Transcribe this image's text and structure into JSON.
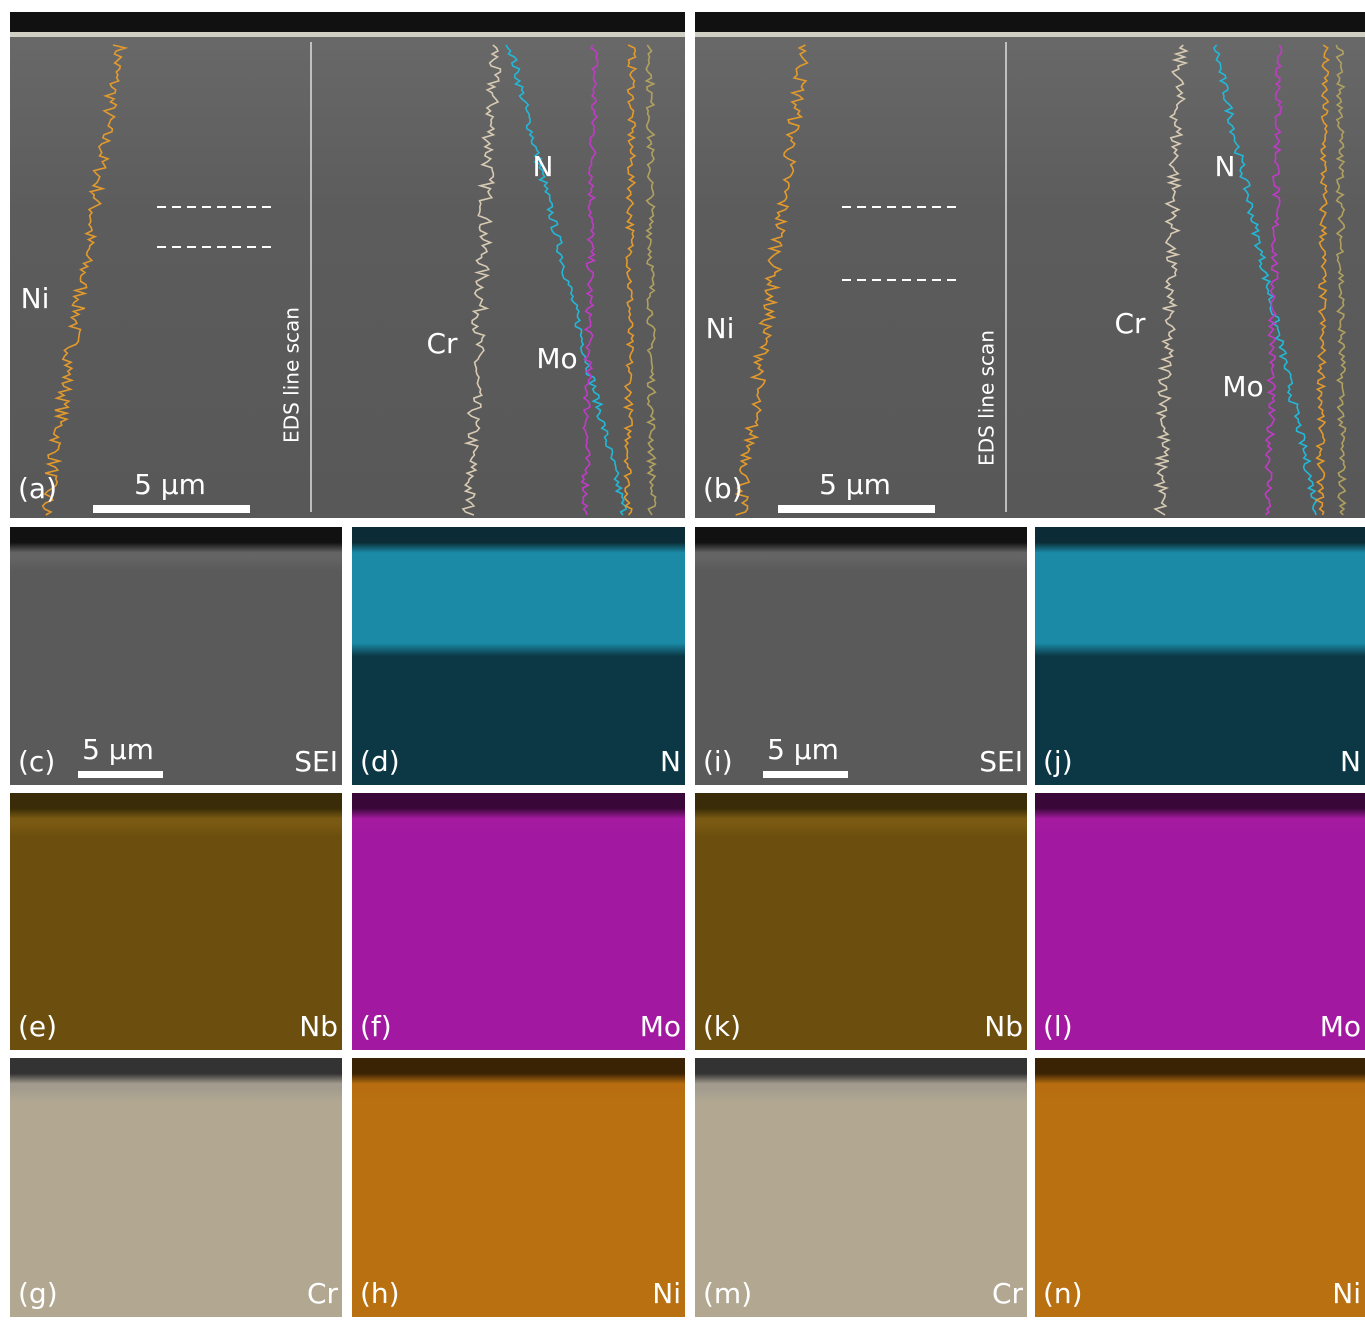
{
  "panels_top": [
    {
      "label": "(a)",
      "scale_bar": "5 μm",
      "line_scan": "EDS line scan",
      "elements": [
        "Ni",
        "Cr",
        "N",
        "Mo"
      ]
    },
    {
      "label": "(b)",
      "scale_bar": "5 μm",
      "line_scan": "EDS line scan",
      "elements": [
        "Ni",
        "Cr",
        "N",
        "Mo"
      ]
    }
  ],
  "panels_map": [
    {
      "label": "(c)",
      "element": "SEI",
      "scale_bar": "5 μm"
    },
    {
      "label": "(d)",
      "element": "N"
    },
    {
      "label": "(i)",
      "element": "SEI",
      "scale_bar": "5 μm"
    },
    {
      "label": "(j)",
      "element": "N"
    },
    {
      "label": "(e)",
      "element": "Nb"
    },
    {
      "label": "(f)",
      "element": "Mo"
    },
    {
      "label": "(k)",
      "element": "Nb"
    },
    {
      "label": "(l)",
      "element": "Mo"
    },
    {
      "label": "(g)",
      "element": "Cr"
    },
    {
      "label": "(h)",
      "element": "Ni"
    },
    {
      "label": "(m)",
      "element": "Cr"
    },
    {
      "label": "(n)",
      "element": "Ni"
    }
  ]
}
